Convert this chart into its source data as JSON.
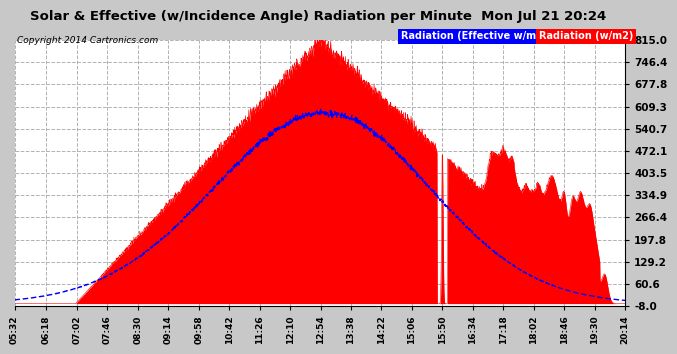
{
  "title": "Solar & Effective (w/Incidence Angle) Radiation per Minute  Mon Jul 21 20:24",
  "copyright": "Copyright 2014 Cartronics.com",
  "legend_blue": "Radiation (Effective w/m2)",
  "legend_red": "Radiation (w/m2)",
  "ylim": [
    -8.0,
    815.0
  ],
  "yticks": [
    -8.0,
    60.6,
    129.2,
    197.8,
    266.4,
    334.9,
    403.5,
    472.1,
    540.7,
    609.3,
    677.8,
    746.4,
    815.0
  ],
  "bg_color": "#c8c8c8",
  "plot_bg": "#ffffff",
  "x_labels": [
    "05:32",
    "06:18",
    "07:02",
    "07:46",
    "08:30",
    "09:14",
    "09:58",
    "10:42",
    "11:26",
    "12:10",
    "12:54",
    "13:38",
    "14:22",
    "15:06",
    "15:50",
    "16:34",
    "17:18",
    "18:02",
    "18:46",
    "19:30",
    "20:14"
  ],
  "n_points": 2000
}
